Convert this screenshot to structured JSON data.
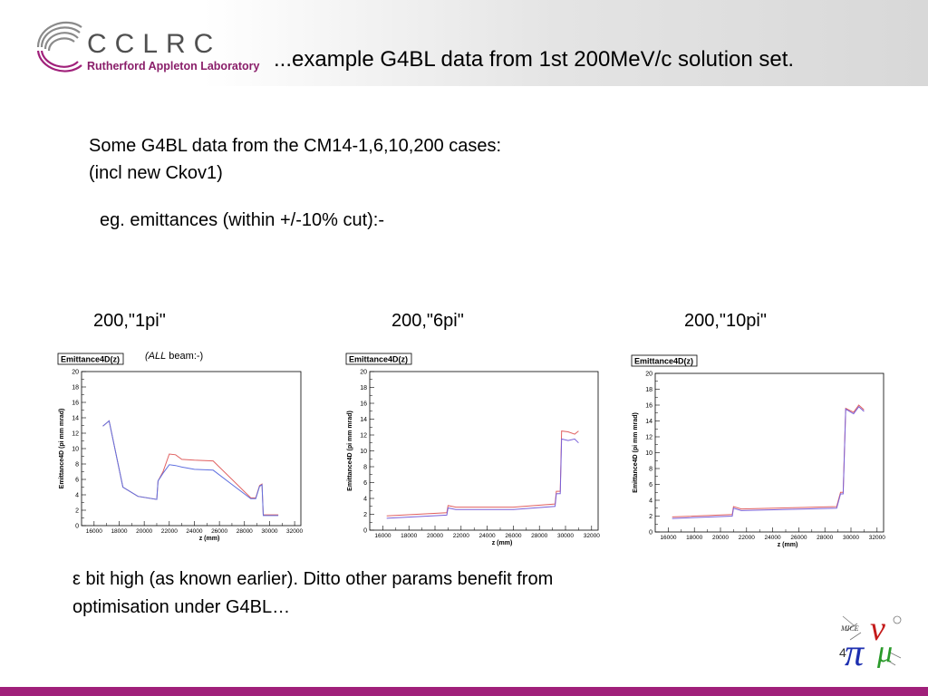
{
  "header": {
    "logo_name": "CCLRC",
    "logo_sub": "Rutherford Appleton Laboratory",
    "title": "...example G4BL data from 1st 200MeV/c solution set.",
    "colors": {
      "brand_purple": "#8a1f6a",
      "footer_bar": "#a0207a",
      "logo_gray": "#505050"
    }
  },
  "intro": {
    "line1": "Some G4BL data from the CM14-1,6,10,200 cases:",
    "line2": "(incl new Ckov1)",
    "emittance_note": "eg. emittances (within +/-10% cut):-"
  },
  "cases": [
    "200,\"1pi\"",
    "200,\"6pi\"",
    "200,\"10pi\""
  ],
  "beam_note": {
    "italic": "(ALL",
    "rest": " beam:-)"
  },
  "conclusion": {
    "line1": "ε bit high (as known earlier). Ditto other params benefit from",
    "line2": "optimisation under G4BL…"
  },
  "page_number": "4",
  "mice_logo_text": "MICE",
  "chart_data": [
    {
      "type": "line",
      "title": "Emittance4D(z)",
      "xlabel": "z (mm)",
      "ylabel": "Emittance4D (pi mm mrad)",
      "xlim": [
        15000,
        32500
      ],
      "ylim": [
        0,
        20
      ],
      "xticks": [
        16000,
        18000,
        20000,
        22000,
        24000,
        26000,
        28000,
        30000,
        32000
      ],
      "yticks": [
        0,
        2,
        4,
        6,
        8,
        10,
        12,
        14,
        16,
        18,
        20
      ],
      "series": [
        {
          "color": "#e06060",
          "x": [
            16700,
            17200,
            18300,
            19500,
            21000,
            21100,
            21500,
            22000,
            22500,
            23000,
            24000,
            25500,
            28500,
            28900,
            29200,
            29400,
            29500,
            30700
          ],
          "y": [
            12.9,
            13.6,
            5.0,
            3.8,
            3.4,
            5.8,
            7.0,
            9.3,
            9.2,
            8.6,
            8.5,
            8.4,
            3.6,
            3.6,
            5.2,
            5.4,
            1.4,
            1.4
          ]
        },
        {
          "color": "#6070e0",
          "x": [
            16700,
            17200,
            18300,
            19500,
            21000,
            21100,
            21500,
            22000,
            22500,
            23000,
            24000,
            25500,
            28500,
            28900,
            29200,
            29400,
            29500,
            30700
          ],
          "y": [
            12.9,
            13.6,
            5.0,
            3.8,
            3.4,
            5.8,
            6.8,
            7.9,
            7.8,
            7.6,
            7.3,
            7.2,
            3.5,
            3.5,
            5.1,
            5.3,
            1.3,
            1.3
          ]
        }
      ]
    },
    {
      "type": "line",
      "title": "Emittance4D(z)",
      "xlabel": "z (mm)",
      "ylabel": "Emittance4D (pi mm mrad)",
      "xlim": [
        15000,
        32500
      ],
      "ylim": [
        0,
        20
      ],
      "xticks": [
        16000,
        18000,
        20000,
        22000,
        24000,
        26000,
        28000,
        30000,
        32000
      ],
      "yticks": [
        0,
        2,
        4,
        6,
        8,
        10,
        12,
        14,
        16,
        18,
        20
      ],
      "series": [
        {
          "color": "#e06060",
          "x": [
            16300,
            20900,
            21000,
            21600,
            26000,
            29200,
            29300,
            29600,
            29700,
            30200,
            30700,
            31000
          ],
          "y": [
            1.8,
            2.2,
            3.1,
            2.9,
            2.9,
            3.3,
            4.9,
            4.9,
            12.5,
            12.4,
            12.1,
            12.5
          ]
        },
        {
          "color": "#7a60d8",
          "x": [
            16300,
            20900,
            21000,
            21600,
            26000,
            29200,
            29300,
            29600,
            29700,
            30200,
            30700,
            31000
          ],
          "y": [
            1.5,
            1.9,
            2.8,
            2.6,
            2.6,
            3.0,
            4.6,
            4.6,
            11.5,
            11.3,
            11.5,
            11.0
          ]
        }
      ]
    },
    {
      "type": "line",
      "title": "Emittance4D(z)",
      "xlabel": "z (mm)",
      "ylabel": "Emittance4D (pi mm mrad)",
      "xlim": [
        15000,
        32500
      ],
      "ylim": [
        0,
        20
      ],
      "xticks": [
        16000,
        18000,
        20000,
        22000,
        24000,
        26000,
        28000,
        30000,
        32000
      ],
      "yticks": [
        0,
        2,
        4,
        6,
        8,
        10,
        12,
        14,
        16,
        18,
        20
      ],
      "series": [
        {
          "color": "#e06060",
          "x": [
            16300,
            20900,
            21000,
            21600,
            28900,
            29200,
            29400,
            29600,
            30200,
            30600,
            31000
          ],
          "y": [
            1.9,
            2.2,
            3.2,
            2.9,
            3.2,
            5.0,
            5.0,
            15.6,
            15.1,
            16.0,
            15.4
          ]
        },
        {
          "color": "#7a60d8",
          "x": [
            16300,
            20900,
            21000,
            21600,
            28900,
            29200,
            29400,
            29600,
            30200,
            30600,
            31000
          ],
          "y": [
            1.7,
            2.0,
            3.0,
            2.7,
            3.0,
            4.8,
            4.8,
            15.5,
            14.9,
            15.8,
            15.2
          ]
        }
      ]
    }
  ]
}
